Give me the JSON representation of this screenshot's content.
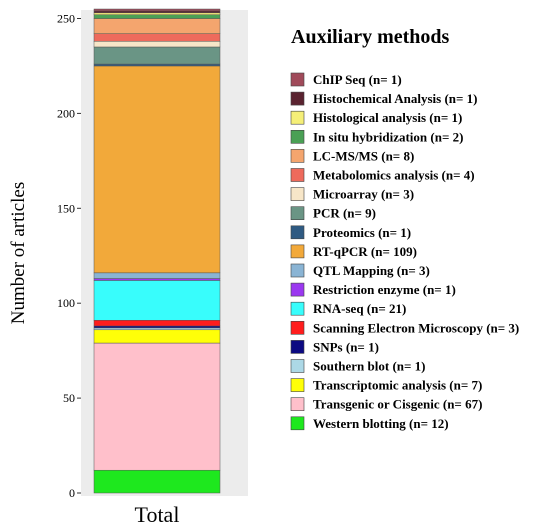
{
  "chart_data": {
    "type": "bar",
    "stacked": true,
    "categories": [
      "Total"
    ],
    "ylabel": "Number of articles",
    "xlabel": "",
    "ylim": [
      0,
      255
    ],
    "yticks": [
      0,
      50,
      100,
      150,
      200,
      250
    ],
    "grid": false,
    "legend_position": "right",
    "legend_title": "Auxiliary methods",
    "series": [
      {
        "name": "ChIP Seq (n= 1)",
        "values": [
          1
        ],
        "color": "#a04a5a"
      },
      {
        "name": "Histochemical Analysis (n= 1)",
        "values": [
          1
        ],
        "color": "#5a2330"
      },
      {
        "name": "Histological analysis (n= 1)",
        "values": [
          1
        ],
        "color": "#f5ef78"
      },
      {
        "name": "In situ hybridization (n= 2)",
        "values": [
          2
        ],
        "color": "#4aa055"
      },
      {
        "name": "LC-MS/MS (n= 8)",
        "values": [
          8
        ],
        "color": "#f4a56e"
      },
      {
        "name": "Metabolomics analysis (n= 4)",
        "values": [
          4
        ],
        "color": "#ee6a5c"
      },
      {
        "name": "Microarray (n= 3)",
        "values": [
          3
        ],
        "color": "#f7e6c8"
      },
      {
        "name": "PCR (n= 9)",
        "values": [
          9
        ],
        "color": "#6a9585"
      },
      {
        "name": "Proteomics (n= 1)",
        "values": [
          1
        ],
        "color": "#2f5a82"
      },
      {
        "name": "RT-qPCR (n= 109)",
        "values": [
          109
        ],
        "color": "#f2a93a"
      },
      {
        "name": "QTL Mapping (n= 3)",
        "values": [
          3
        ],
        "color": "#8ab4d4"
      },
      {
        "name": "Restriction enzyme (n= 1)",
        "values": [
          1
        ],
        "color": "#9b38f0"
      },
      {
        "name": "RNA-seq (n= 21)",
        "values": [
          21
        ],
        "color": "#38fdfc"
      },
      {
        "name": "Scanning Electron Microscopy (n= 3)",
        "values": [
          3
        ],
        "color": "#ff1d1d"
      },
      {
        "name": "SNPs (n= 1)",
        "values": [
          1
        ],
        "color": "#0c0a82"
      },
      {
        "name": "Southern blot (n= 1)",
        "values": [
          1
        ],
        "color": "#acd8e6"
      },
      {
        "name": "Transcriptomic analysis (n= 7)",
        "values": [
          7
        ],
        "color": "#ffff08"
      },
      {
        "name": "Transgenic or Cisgenic (n= 67)",
        "values": [
          67
        ],
        "color": "#ffc0cb"
      },
      {
        "name": "Western blotting (n= 12)",
        "values": [
          12
        ],
        "color": "#1ee81e"
      }
    ]
  },
  "colors": {
    "plot_background": "#ececec",
    "bar_outline": "#555555"
  }
}
